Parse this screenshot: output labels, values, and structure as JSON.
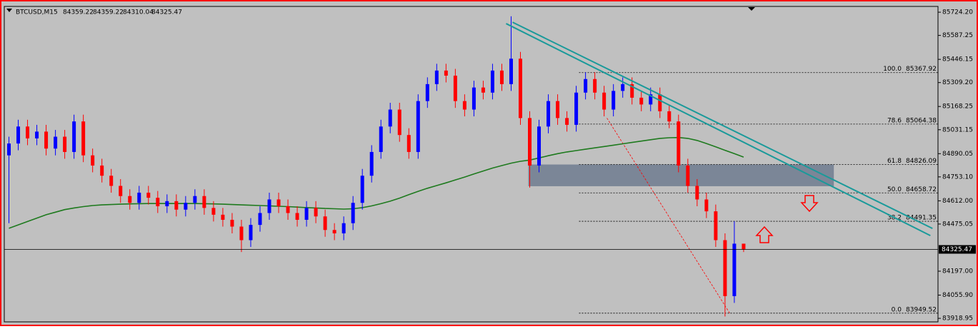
{
  "chart_data": {
    "type": "candlestick",
    "title": "BTCUSD,M15",
    "up_color": "#0000ff",
    "down_color": "#ff0000",
    "xlim": [
      -0.5,
      99.9
    ],
    "ylim": [
      83894,
      85754
    ],
    "yticks": [
      {
        "value": 85724.2,
        "label": "85724.20"
      },
      {
        "value": 85587.25,
        "label": "85587.25"
      },
      {
        "value": 85446.15,
        "label": "85446.15"
      },
      {
        "value": 85309.2,
        "label": "85309.20"
      },
      {
        "value": 85168.25,
        "label": "85168.25"
      },
      {
        "value": 85031.15,
        "label": "85031.15"
      },
      {
        "value": 84890.05,
        "label": "84890.05"
      },
      {
        "value": 84753.1,
        "label": "84753.10"
      },
      {
        "value": 84612,
        "label": "84612.00"
      },
      {
        "value": 84475.05,
        "label": "84475.05"
      },
      {
        "value": 84197,
        "label": "84197.00"
      },
      {
        "value": 84055.9,
        "label": "84055.90"
      },
      {
        "value": 83918.95,
        "label": "83918.95"
      }
    ],
    "open": [
      84880,
      84950,
      85050,
      84980,
      85020,
      84920,
      84990,
      84900,
      85080,
      84880,
      84820,
      84760,
      84700,
      84640,
      84600,
      84660,
      84630,
      84580,
      84610,
      84560,
      84600,
      84640,
      84570,
      84530,
      84500,
      84460,
      84380,
      84470,
      84540,
      84620,
      84580,
      84540,
      84500,
      84570,
      84520,
      84440,
      84420,
      84480,
      84600,
      84760,
      84900,
      85050,
      85150,
      85000,
      84900,
      85200,
      85300,
      85380,
      85350,
      85200,
      85150,
      85280,
      85250,
      85380,
      85300,
      85450,
      85100,
      84820,
      85050,
      85200,
      85100,
      85060,
      85250,
      85330,
      85250,
      85150,
      85260,
      85300,
      85220,
      85180,
      85240,
      85140,
      85080,
      84820,
      84700,
      84620,
      84550,
      84380,
      84050,
      84359.22
    ],
    "high": [
      84990,
      85090,
      85090,
      85060,
      85060,
      85030,
      85030,
      85120,
      85120,
      84920,
      84860,
      84800,
      84740,
      84680,
      84700,
      84700,
      84670,
      84650,
      84650,
      84640,
      84680,
      84680,
      84610,
      84570,
      84540,
      84500,
      84510,
      84580,
      84660,
      84660,
      84620,
      84580,
      84610,
      84610,
      84560,
      84480,
      84520,
      84640,
      84800,
      84940,
      85090,
      85190,
      85190,
      85040,
      85240,
      85340,
      85420,
      85420,
      85390,
      85240,
      85320,
      85320,
      85420,
      85420,
      85700,
      85490,
      85140,
      85090,
      85240,
      85240,
      85140,
      85290,
      85370,
      85370,
      85290,
      85300,
      85340,
      85340,
      85260,
      85280,
      85280,
      85180,
      85120,
      84860,
      84740,
      84660,
      84590,
      84420,
      84491,
      84359.22
    ],
    "low": [
      84480,
      84910,
      84940,
      84940,
      84880,
      84880,
      84860,
      84860,
      84840,
      84780,
      84720,
      84660,
      84600,
      84560,
      84560,
      84590,
      84540,
      84540,
      84520,
      84520,
      84560,
      84530,
      84490,
      84460,
      84420,
      84310,
      84340,
      84430,
      84500,
      84540,
      84500,
      84460,
      84460,
      84480,
      84400,
      84380,
      84380,
      84440,
      84560,
      84720,
      84860,
      85010,
      84960,
      84860,
      84860,
      85160,
      85260,
      85310,
      85160,
      85110,
      85110,
      85210,
      85210,
      85260,
      85260,
      85060,
      84690,
      84780,
      85010,
      85060,
      85020,
      85020,
      85210,
      85210,
      85110,
      85110,
      85220,
      85180,
      85140,
      85140,
      85100,
      85040,
      84780,
      84660,
      84580,
      84510,
      84340,
      83930,
      84010,
      84310.04
    ],
    "close": [
      84950,
      85050,
      84980,
      85020,
      84920,
      84990,
      84900,
      85080,
      84880,
      84820,
      84760,
      84700,
      84640,
      84600,
      84660,
      84630,
      84580,
      84610,
      84560,
      84600,
      84640,
      84570,
      84530,
      84500,
      84460,
      84380,
      84470,
      84540,
      84620,
      84580,
      84540,
      84500,
      84570,
      84520,
      84440,
      84420,
      84480,
      84600,
      84760,
      84900,
      85050,
      85150,
      85000,
      84900,
      85200,
      85300,
      85380,
      85350,
      85200,
      85150,
      85280,
      85250,
      85380,
      85300,
      85450,
      85100,
      84820,
      85050,
      85200,
      85100,
      85060,
      85250,
      85330,
      85250,
      85150,
      85260,
      85300,
      85220,
      85180,
      85240,
      85140,
      85080,
      84820,
      84700,
      84620,
      84550,
      84380,
      84050,
      84359.22,
      84325.47
    ],
    "ma": {
      "color": "#1e7a1e",
      "values": [
        84450,
        84470,
        84490,
        84510,
        84530,
        84545,
        84560,
        84570,
        84578,
        84584,
        84588,
        84590,
        84592,
        84594,
        84595,
        84596,
        84596,
        84596,
        84596,
        84596,
        84596,
        84595,
        84594,
        84592,
        84590,
        84588,
        84586,
        84584,
        84582,
        84580,
        84578,
        84575,
        84572,
        84570,
        84567,
        84565,
        84563,
        84565,
        84572,
        84582,
        84595,
        84610,
        84628,
        84648,
        84668,
        84686,
        84702,
        84718,
        84735,
        84752,
        84770,
        84788,
        84805,
        84820,
        84834,
        84845,
        84852,
        84865,
        84878,
        84890,
        84900,
        84908,
        84916,
        84924,
        84932,
        84940,
        84948,
        84956,
        84964,
        84972,
        84980,
        84984,
        84985,
        84980,
        84968,
        84950,
        84930,
        84910,
        84890,
        84870
      ]
    },
    "trendlines": [
      {
        "color": "#1a9a9a",
        "x": [
          53.46,
          99.08
        ],
        "y": [
          85657,
          84407
        ]
      },
      {
        "color": "#1a9a9a",
        "x": [
          54.15,
          99.31
        ],
        "y": [
          85665,
          84449
        ]
      }
    ],
    "zone": {
      "color": "#6e7b8f",
      "x": [
        55.85,
        88.7
      ],
      "y": [
        84698,
        84826.09
      ]
    },
    "fib_diagonal": {
      "color": "#ff0000",
      "x": [
        64.3,
        77.5
      ],
      "y": [
        85100,
        83949.52
      ]
    },
    "fib_levels": [
      {
        "ratio": "100.0",
        "price": 85367.92
      },
      {
        "ratio": "78.6",
        "price": 85064.38
      },
      {
        "ratio": "61.8",
        "price": 84826.09
      },
      {
        "ratio": "50.0",
        "price": 84658.72
      },
      {
        "ratio": "38.2",
        "price": 84491.35
      },
      {
        "ratio": "0.0",
        "price": 83949.52
      }
    ]
  }
}
